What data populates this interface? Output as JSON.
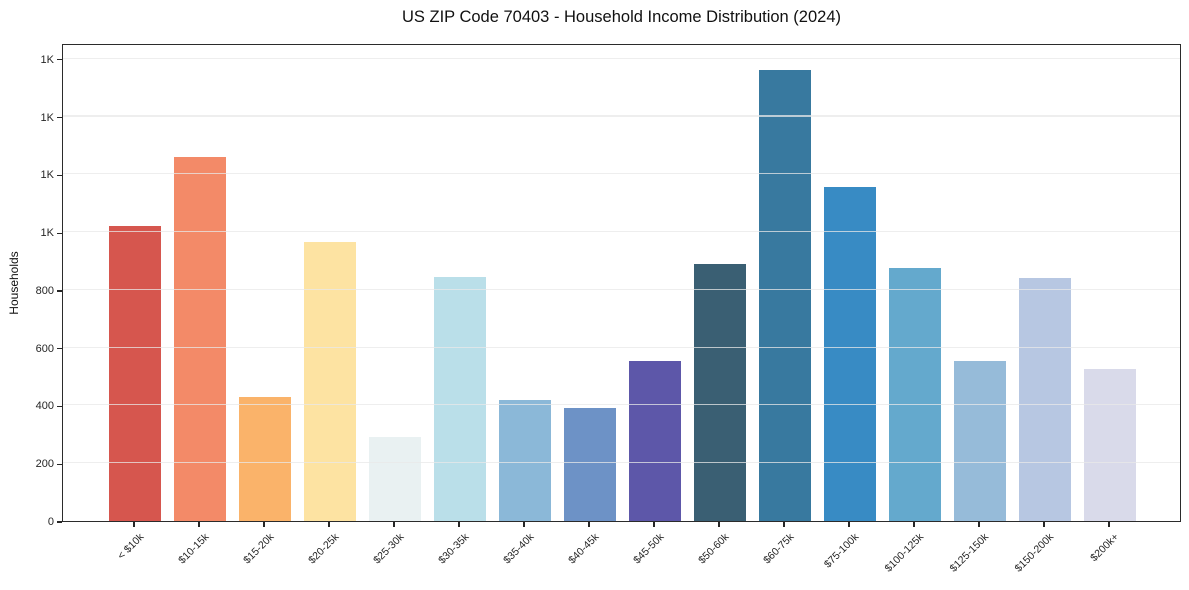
{
  "chart_data": {
    "type": "bar",
    "title": "US ZIP Code 70403 - Household Income Distribution (2024)",
    "xlabel": "",
    "ylabel": "Households",
    "ylim": [
      0,
      1655
    ],
    "grid": "horizontal gridlines, light gray, drawn on top of bars",
    "legend": "none",
    "categories": [
      "< $10k",
      "$10-15k",
      "$15-20k",
      "$20-25k",
      "$25-30k",
      "$30-35k",
      "$35-40k",
      "$40-45k",
      "$45-50k",
      "$50-60k",
      "$60-75k",
      "$75-100k",
      "$100-125k",
      "$125-150k",
      "$150-200k",
      "$200k+"
    ],
    "values": [
      1020,
      1260,
      430,
      965,
      290,
      845,
      420,
      390,
      555,
      890,
      1560,
      1155,
      875,
      555,
      840,
      525
    ],
    "bar_colors": [
      "#d6564e",
      "#f38a68",
      "#fab36a",
      "#fde3a2",
      "#e9f1f2",
      "#badfe9",
      "#8bb8d8",
      "#6d92c6",
      "#5d57a9",
      "#3a5f73",
      "#38799f",
      "#388bc4",
      "#64a9cd",
      "#96bbd9",
      "#b7c7e2",
      "#d9daea"
    ],
    "ytick_values": [
      0,
      200,
      400,
      600,
      800,
      1000,
      1200,
      1400,
      1600
    ],
    "ytick_labels": [
      "0",
      "200",
      "400",
      "600",
      "800",
      "1K",
      "1K",
      "1K",
      "1K"
    ],
    "axis_color": "#2b2b2b",
    "gridline_color": "#e8e8e8",
    "background_color": "#ffffff"
  }
}
